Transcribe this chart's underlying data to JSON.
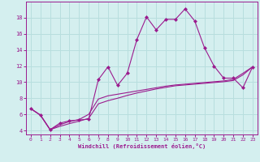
{
  "xlabel": "Windchill (Refroidissement éolien,°C)",
  "x_values": [
    0,
    1,
    2,
    3,
    4,
    5,
    6,
    7,
    8,
    9,
    10,
    11,
    12,
    13,
    14,
    15,
    16,
    17,
    18,
    19,
    20,
    21,
    22,
    23
  ],
  "line1_y": [
    6.7,
    5.9,
    4.1,
    4.9,
    5.2,
    5.3,
    5.4,
    10.3,
    11.9,
    9.6,
    11.1,
    15.3,
    18.1,
    16.5,
    17.8,
    17.8,
    19.1,
    17.6,
    14.3,
    12.0,
    10.5,
    10.5,
    9.3,
    11.9
  ],
  "line2_y": [
    6.7,
    5.9,
    4.1,
    4.5,
    4.85,
    5.15,
    5.5,
    7.3,
    7.7,
    8.0,
    8.35,
    8.65,
    8.9,
    9.15,
    9.35,
    9.55,
    9.65,
    9.75,
    9.85,
    9.95,
    10.05,
    10.2,
    10.9,
    11.9
  ],
  "line3_y": [
    6.7,
    5.9,
    4.1,
    4.7,
    5.1,
    5.35,
    6.0,
    7.9,
    8.3,
    8.5,
    8.7,
    8.9,
    9.1,
    9.3,
    9.5,
    9.65,
    9.75,
    9.85,
    9.95,
    10.05,
    10.15,
    10.35,
    11.1,
    11.9
  ],
  "line_color": "#9b1b8e",
  "bg_color": "#d4efef",
  "grid_color": "#b8dede",
  "tick_color": "#9b1b8e",
  "ylim": [
    3.5,
    20.0
  ],
  "xlim": [
    -0.5,
    23.5
  ],
  "yticks": [
    4,
    6,
    8,
    10,
    12,
    14,
    16,
    18
  ],
  "xticks": [
    0,
    1,
    2,
    3,
    4,
    5,
    6,
    7,
    8,
    9,
    10,
    11,
    12,
    13,
    14,
    15,
    16,
    17,
    18,
    19,
    20,
    21,
    22,
    23
  ]
}
